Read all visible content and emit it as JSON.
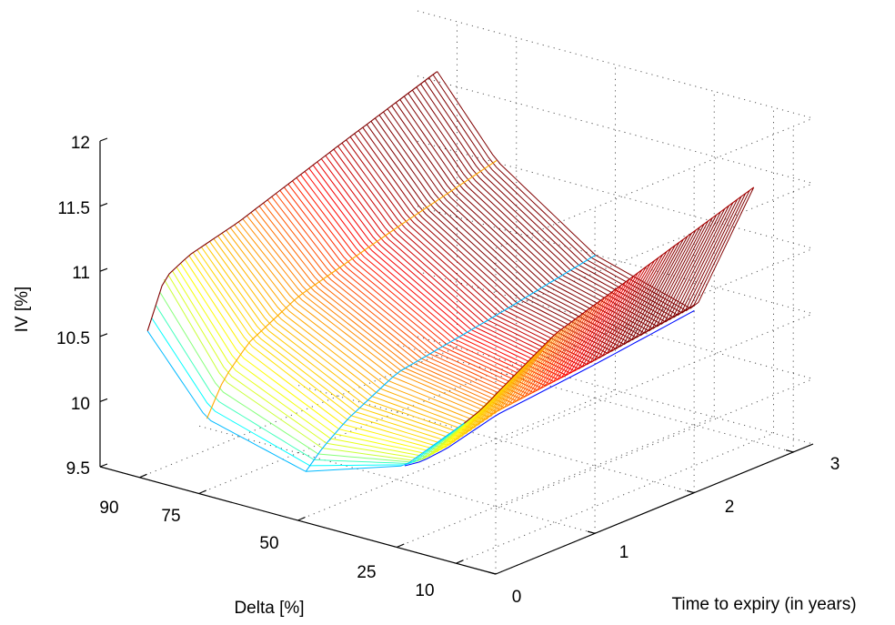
{
  "chart_data": {
    "type": "surface-mesh",
    "title": "",
    "xlabel": "Delta [%]",
    "ylabel": "Time to expiry (in years)",
    "zlabel": "IV [%]",
    "x_ticks": [
      "90",
      "75",
      "50",
      "25",
      "10"
    ],
    "y_ticks": [
      "0",
      "1",
      "2",
      "3"
    ],
    "z_ticks": [
      "9.5",
      "10",
      "10.5",
      "11",
      "11.5",
      "12"
    ],
    "zlim": [
      9.5,
      12
    ],
    "grid": true,
    "colormap": "jet",
    "colors": {
      "low": "#00008f",
      "high": "#800000"
    },
    "maturities": [
      0.08,
      0.25,
      0.5,
      1,
      2,
      3
    ],
    "deltas": [
      90,
      75,
      50,
      25,
      10
    ],
    "iv": [
      [
        10.6,
        10.05,
        9.85,
        10.1,
        10.55
      ],
      [
        10.95,
        10.3,
        9.98,
        10.08,
        10.6
      ],
      [
        11.05,
        10.5,
        10.12,
        10.1,
        10.72
      ],
      [
        11.15,
        10.7,
        10.32,
        10.2,
        10.95
      ],
      [
        11.42,
        10.92,
        10.45,
        10.28,
        11.2
      ],
      [
        11.68,
        11.12,
        10.6,
        10.38,
        11.45
      ]
    ]
  }
}
